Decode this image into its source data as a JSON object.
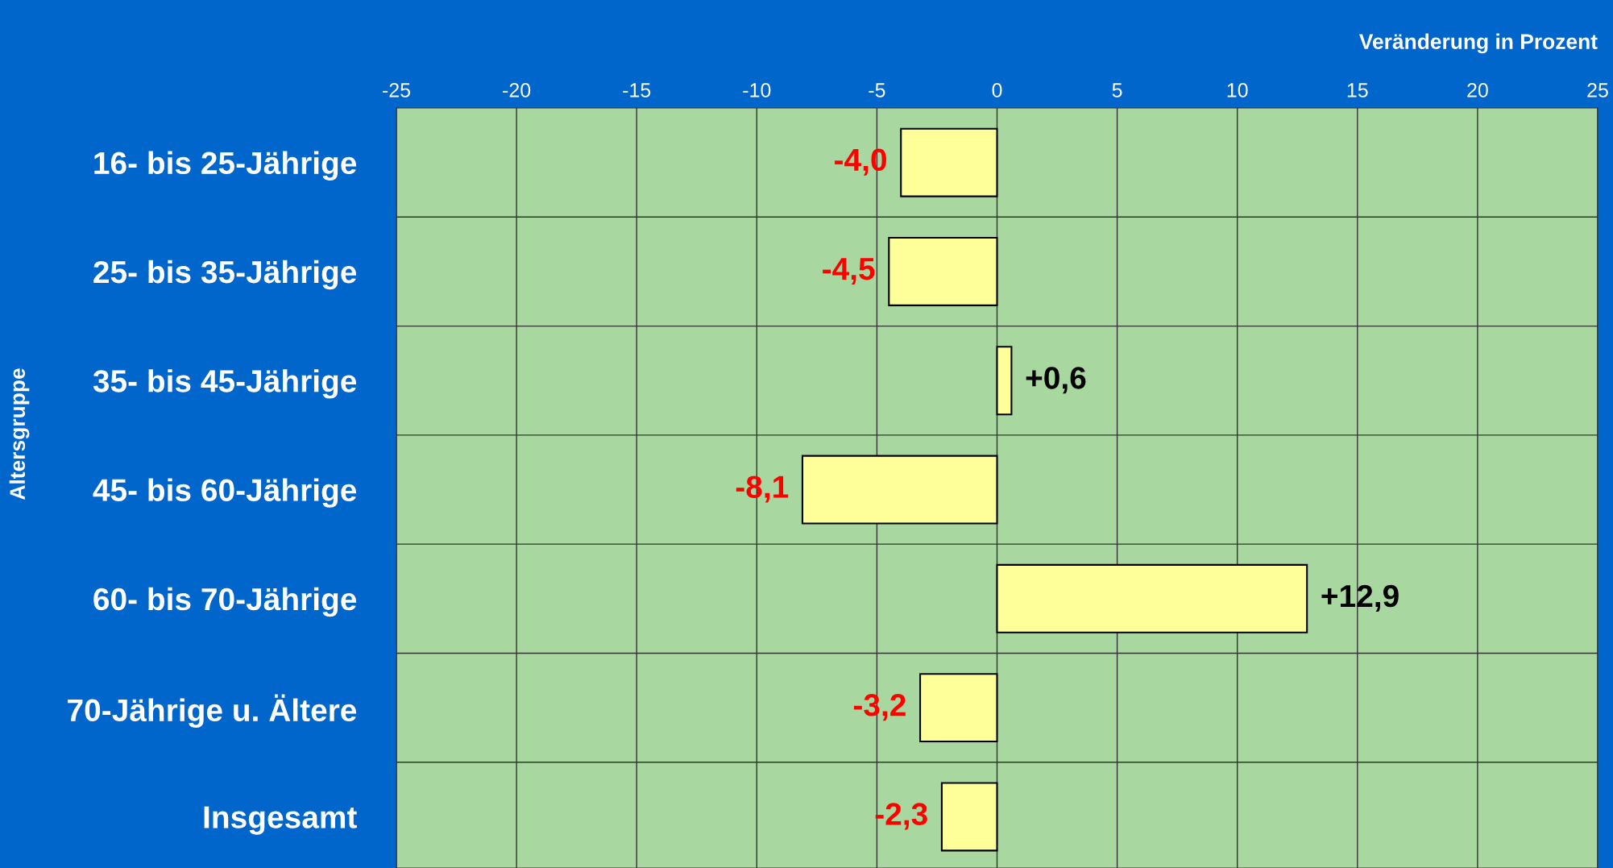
{
  "chart_data": {
    "type": "bar",
    "orientation": "horizontal",
    "xlabel": "Veränderung in Prozent",
    "ylabel": "Altersgruppe",
    "categories": [
      "16- bis 25-Jährige",
      "25- bis 35-Jährige",
      "35- bis 45-Jährige",
      "45- bis 60-Jährige",
      "60- bis 70-Jährige",
      "70-Jährige u. Ältere",
      "Insgesamt"
    ],
    "values": [
      -4.0,
      -4.5,
      0.6,
      -8.1,
      12.9,
      -3.2,
      -2.3
    ],
    "value_labels": [
      "-4,0",
      "-4,5",
      "+0,6",
      "-8,1",
      "+12,9",
      "-3,2",
      "-2,3"
    ],
    "color": "#ffff99",
    "xlim": [
      -25,
      25
    ],
    "xticks": [
      -25,
      -20,
      -15,
      -10,
      -5,
      0,
      5,
      10,
      15,
      20,
      25
    ],
    "grid": true
  }
}
